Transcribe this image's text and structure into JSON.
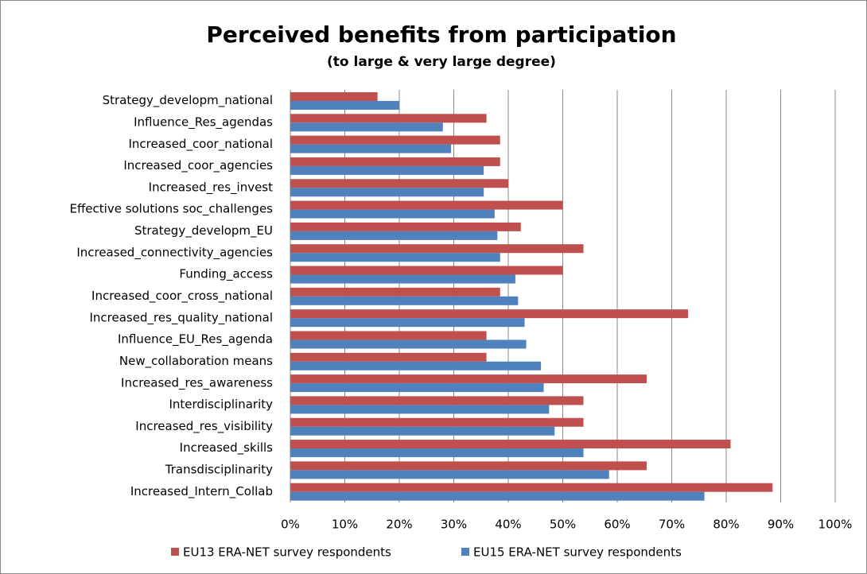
{
  "chart_data": {
    "type": "hbar",
    "title": "Perceived benefits from participation",
    "subtitle": "(to large & very large degree)",
    "categories": [
      "Strategy_developm_national",
      "Influence_Res_agendas",
      "Increased_coor_national",
      "Increased_coor_agencies",
      "Increased_res_invest",
      "Effective solutions soc_challenges",
      "Strategy_developm_EU",
      "Increased_connectivity_agencies",
      "Funding_access",
      "Increased_coor_cross_national",
      "Increased_res_quality_national",
      "Influence_EU_Res_agenda",
      "New_collaboration means",
      "Increased_res_awareness",
      "Interdisciplinarity",
      "Increased_res_visibility",
      "Increased_skills",
      "Transdisciplinarity",
      "Increased_Intern_Collab"
    ],
    "series": [
      {
        "name": "EU13 ERA-NET survey respondents",
        "color": "#c0504d",
        "values": [
          16,
          36,
          38.5,
          38.5,
          40,
          50,
          42.3,
          53.8,
          50,
          38.5,
          73,
          36,
          36,
          65.4,
          53.8,
          53.8,
          80.8,
          65.4,
          88.5
        ]
      },
      {
        "name": "EU15 ERA-NET survey respondents",
        "color": "#4f81bd",
        "values": [
          20,
          28,
          29.5,
          35.5,
          35.5,
          37.5,
          38,
          38.5,
          41.3,
          41.8,
          43,
          43.3,
          46,
          46.5,
          47.5,
          48.5,
          53.8,
          58.5,
          76
        ]
      }
    ],
    "xlim": [
      0,
      100
    ],
    "xticks": [
      {
        "value": 0,
        "label": "0%"
      },
      {
        "value": 10,
        "label": "10%"
      },
      {
        "value": 20,
        "label": "20%"
      },
      {
        "value": 30,
        "label": "30%"
      },
      {
        "value": 40,
        "label": "40%"
      },
      {
        "value": 50,
        "label": "50%"
      },
      {
        "value": 60,
        "label": "60%"
      },
      {
        "value": 70,
        "label": "70%"
      },
      {
        "value": 80,
        "label": "80%"
      },
      {
        "value": 90,
        "label": "90%"
      },
      {
        "value": 100,
        "label": "100%"
      }
    ],
    "grid": true
  }
}
